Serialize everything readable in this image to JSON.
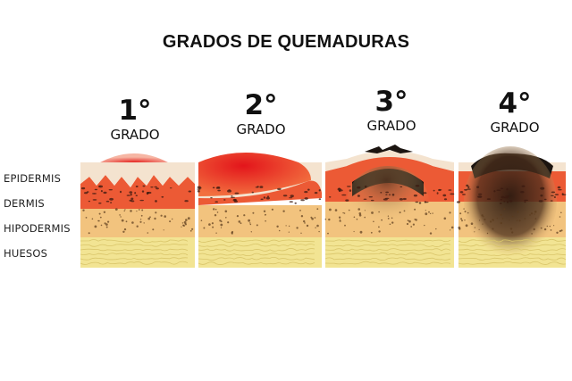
{
  "title": "GRADOS DE QUEMADURAS",
  "layers": [
    "EPIDERMIS",
    "DERMIS",
    "HIPODERMIS",
    "HUESOS"
  ],
  "degrees": [
    {
      "number": "1°",
      "label": "GRADO"
    },
    {
      "number": "2°",
      "label": "GRADO"
    },
    {
      "number": "3°",
      "label": "GRADO"
    },
    {
      "number": "4°",
      "label": "GRADO"
    }
  ],
  "colors": {
    "epidermis": "#f4e3cf",
    "dermis": "#ee6a3c",
    "hipodermis": "#f2c37e",
    "huesos": "#f2e493",
    "burn_red": "#e5231f",
    "char": "#1b1410"
  }
}
